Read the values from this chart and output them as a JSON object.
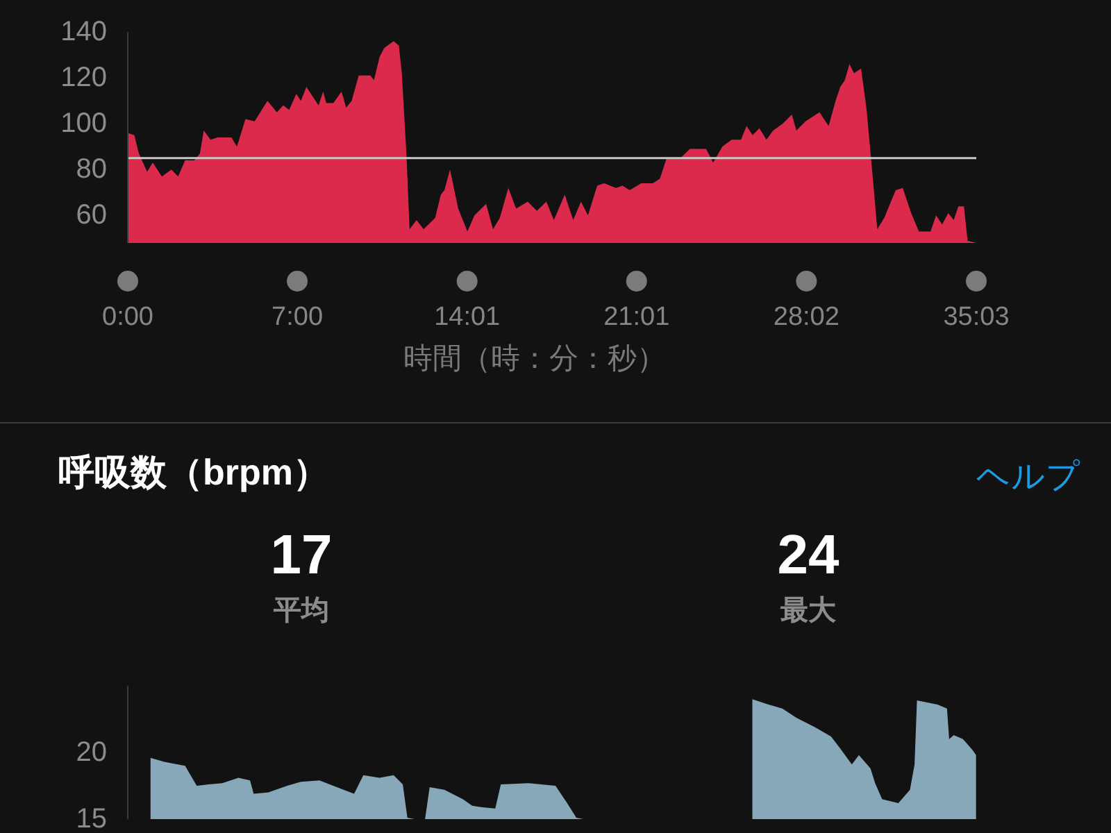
{
  "chart_data": [
    {
      "type": "area",
      "xlabel": "時間（時：分：秒）",
      "color": "#dc2a4d",
      "x": [
        0,
        0.27,
        0.46,
        0.8,
        1.03,
        1.41,
        1.8,
        2.08,
        2.37,
        2.75,
        2.98,
        3.14,
        3.42,
        3.71,
        4.28,
        4.51,
        4.86,
        5.24,
        5.77,
        6.16,
        6.42,
        6.67,
        6.96,
        7.15,
        7.38,
        7.88,
        8.07,
        8.2,
        8.49,
        8.83,
        9.02,
        9.25,
        9.54,
        10.02,
        10.17,
        10.4,
        10.59,
        10.98,
        11.2,
        11.32,
        11.51,
        11.64,
        11.93,
        12.22,
        12.7,
        12.93,
        13.08,
        13.31,
        13.65,
        14.03,
        14.32,
        14.8,
        15.09,
        15.37,
        15.72,
        16.04,
        16.52,
        16.9,
        17.29,
        17.6,
        18.05,
        18.4,
        18.72,
        19.01,
        19.39,
        19.68,
        20.16,
        20.44,
        20.73,
        21.21,
        21.69,
        21.98,
        22.26,
        22.83,
        23.22,
        23.89,
        24.18,
        24.56,
        24.94,
        25.33,
        25.56,
        25.81,
        26.09,
        26.38,
        26.66,
        27.05,
        27.43,
        27.62,
        28.0,
        28.57,
        28.95,
        29.24,
        29.43,
        29.62,
        29.81,
        30.0,
        30.29,
        30.52,
        30.77,
        30.96,
        31.25,
        31.72,
        32.01,
        32.36,
        32.68,
        33.16,
        33.39,
        33.64,
        33.89,
        34.12,
        34.31,
        34.54,
        34.69,
        35.05
      ],
      "values": [
        96,
        95,
        87,
        79,
        83,
        77,
        80,
        77,
        84,
        84,
        87,
        97,
        93,
        94,
        94,
        90,
        102,
        101,
        110,
        105,
        108,
        106,
        113,
        110,
        116,
        108,
        114,
        109,
        109,
        114,
        107,
        110,
        121,
        121,
        119,
        129,
        133,
        136,
        134,
        122,
        87,
        54,
        58,
        54,
        59,
        69,
        71,
        80,
        63,
        53,
        60,
        65,
        54,
        59,
        72,
        63,
        66,
        62,
        66,
        58,
        69,
        58,
        66,
        60,
        73,
        74,
        72,
        73,
        71,
        74,
        74,
        76,
        85,
        85,
        89,
        89,
        83,
        90,
        93,
        93,
        99,
        95,
        98,
        93,
        97,
        100,
        104,
        97,
        101,
        105,
        99,
        110,
        116,
        119,
        126,
        122,
        124,
        106,
        77,
        54,
        59,
        71,
        72,
        61,
        53,
        53,
        60,
        56,
        61,
        58,
        64,
        64,
        49,
        48
      ],
      "xlim": [
        0,
        35.05
      ],
      "xticks": [
        {
          "value": 0,
          "label": "0:00"
        },
        {
          "value": 7,
          "label": "7:00"
        },
        {
          "value": 14.017,
          "label": "14:01"
        },
        {
          "value": 21.017,
          "label": "21:01"
        },
        {
          "value": 28.033,
          "label": "28:02"
        },
        {
          "value": 35.05,
          "label": "35:03"
        }
      ],
      "ylim": [
        48,
        140
      ],
      "yticks": [
        60,
        80,
        100,
        120,
        140
      ],
      "ref_lines": [
        {
          "axis": "y",
          "value": 85,
          "color": "#c8c8c8"
        }
      ]
    },
    {
      "type": "area",
      "title": "呼吸数（brpm）",
      "annotations": [
        "ヘルプ",
        "17",
        "平均",
        "24",
        "最大"
      ],
      "color": "#87a8b9",
      "x": [
        0.94,
        1.51,
        2.37,
        2.56,
        2.85,
        3.33,
        3.9,
        4.57,
        5.05,
        5.2,
        5.81,
        6.58,
        7.15,
        7.92,
        8.49,
        9.35,
        9.73,
        10.4,
        10.98,
        11.36,
        11.55,
        11.84,
        12.28,
        12.47,
        13.08,
        13.84,
        14.23,
        14.6,
        15.18,
        15.41,
        16.52,
        17.67,
        18.15,
        18.53,
        18.82,
        22,
        25.8,
        26.47,
        27.04,
        27.62,
        28.38,
        29.05,
        29.43,
        29.91,
        30.2,
        30.68,
        30.87,
        31.16,
        31.83,
        32.31,
        32.5,
        32.6,
        33.45,
        33.84,
        33.93,
        34.12,
        34.5,
        34.89,
        35.04
      ],
      "values": [
        19.6,
        19.3,
        19.0,
        18.4,
        17.5,
        17.6,
        17.7,
        18.1,
        17.9,
        16.9,
        17.0,
        17.5,
        17.8,
        17.9,
        17.5,
        16.9,
        18.3,
        18.1,
        18.3,
        17.6,
        15.1,
        15.0,
        15.0,
        17.4,
        17.2,
        16.5,
        16.0,
        15.9,
        15.8,
        17.6,
        17.7,
        17.5,
        16.2,
        15.1,
        15.0,
        null,
        24.0,
        23.6,
        23.3,
        22.6,
        21.9,
        21.2,
        20.3,
        19.1,
        19.8,
        18.8,
        17.7,
        16.5,
        16.2,
        17.2,
        19.1,
        23.9,
        23.6,
        23.3,
        21.0,
        21.3,
        21.0,
        20.2,
        19.8
      ],
      "xlim": [
        0,
        35.05
      ],
      "ylim": [
        15,
        25
      ],
      "yticks": [
        15,
        20
      ],
      "tick_labels": "y"
    }
  ]
}
